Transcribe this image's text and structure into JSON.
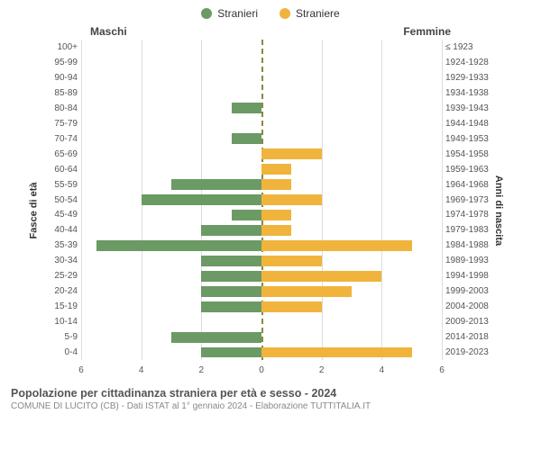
{
  "legend": {
    "male": "Stranieri",
    "female": "Straniere"
  },
  "gender_labels": {
    "male": "Maschi",
    "female": "Femmine"
  },
  "axis_labels": {
    "left": "Fasce di età",
    "right": "Anni di nascita"
  },
  "chart": {
    "type": "population-pyramid",
    "x_max": 6,
    "x_ticks": [
      6,
      4,
      2,
      0,
      2,
      4,
      6
    ],
    "bar_color_male": "#6b9a64",
    "bar_color_female": "#f0b43c",
    "background_color": "#ffffff",
    "grid_color": "#dddddd",
    "center_line_color": "#888844",
    "label_fontsize": 10,
    "axis_label_fontsize": 11,
    "rows": [
      {
        "age": "100+",
        "birth": "≤ 1923",
        "m": 0,
        "f": 0
      },
      {
        "age": "95-99",
        "birth": "1924-1928",
        "m": 0,
        "f": 0
      },
      {
        "age": "90-94",
        "birth": "1929-1933",
        "m": 0,
        "f": 0
      },
      {
        "age": "85-89",
        "birth": "1934-1938",
        "m": 0,
        "f": 0
      },
      {
        "age": "80-84",
        "birth": "1939-1943",
        "m": 1,
        "f": 0
      },
      {
        "age": "75-79",
        "birth": "1944-1948",
        "m": 0,
        "f": 0
      },
      {
        "age": "70-74",
        "birth": "1949-1953",
        "m": 1,
        "f": 0
      },
      {
        "age": "65-69",
        "birth": "1954-1958",
        "m": 0,
        "f": 2
      },
      {
        "age": "60-64",
        "birth": "1959-1963",
        "m": 0,
        "f": 1
      },
      {
        "age": "55-59",
        "birth": "1964-1968",
        "m": 3,
        "f": 1
      },
      {
        "age": "50-54",
        "birth": "1969-1973",
        "m": 4,
        "f": 2
      },
      {
        "age": "45-49",
        "birth": "1974-1978",
        "m": 1,
        "f": 1
      },
      {
        "age": "40-44",
        "birth": "1979-1983",
        "m": 2,
        "f": 1
      },
      {
        "age": "35-39",
        "birth": "1984-1988",
        "m": 5.5,
        "f": 5
      },
      {
        "age": "30-34",
        "birth": "1989-1993",
        "m": 2,
        "f": 2
      },
      {
        "age": "25-29",
        "birth": "1994-1998",
        "m": 2,
        "f": 4
      },
      {
        "age": "20-24",
        "birth": "1999-2003",
        "m": 2,
        "f": 3
      },
      {
        "age": "15-19",
        "birth": "2004-2008",
        "m": 2,
        "f": 2
      },
      {
        "age": "10-14",
        "birth": "2009-2013",
        "m": 0,
        "f": 0
      },
      {
        "age": "5-9",
        "birth": "2014-2018",
        "m": 3,
        "f": 0
      },
      {
        "age": "0-4",
        "birth": "2019-2023",
        "m": 2,
        "f": 5
      }
    ]
  },
  "footer": {
    "title": "Popolazione per cittadinanza straniera per età e sesso - 2024",
    "subtitle": "COMUNE DI LUCITO (CB) - Dati ISTAT al 1° gennaio 2024 - Elaborazione TUTTITALIA.IT"
  }
}
